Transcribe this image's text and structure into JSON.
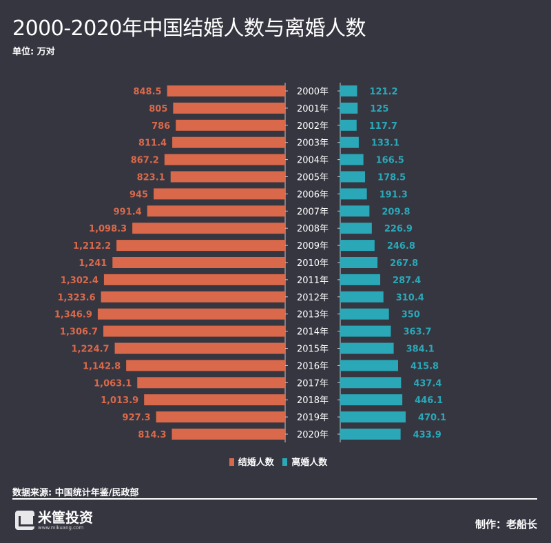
{
  "title": "2000-2020年中国结婚人数与离婚人数",
  "unit": "单位: 万对",
  "source": "数据来源: 中国统计年鉴/民政部",
  "logo": {
    "name": "米筐投资",
    "url": "www.mikuang.com"
  },
  "credit": "制作：老船长",
  "colors": {
    "background": "#363641",
    "marriage": "#d9694a",
    "divorce": "#2aa8b8"
  },
  "chart_data": {
    "type": "bar",
    "orientation": "horizontal-butterfly",
    "title": "2000-2020年中国结婚人数与离婚人数",
    "unit": "单位: 万对",
    "legend_position": "bottom",
    "grid": false,
    "categories": [
      "2000年",
      "2001年",
      "2002年",
      "2003年",
      "2004年",
      "2005年",
      "2006年",
      "2007年",
      "2008年",
      "2009年",
      "2010年",
      "2011年",
      "2012年",
      "2013年",
      "2014年",
      "2015年",
      "2016年",
      "2017年",
      "2018年",
      "2019年",
      "2020年"
    ],
    "series": [
      {
        "name": "结婚人数",
        "side": "left",
        "values": [
          848.5,
          805,
          786,
          811.4,
          867.2,
          823.1,
          945,
          991.4,
          1098.3,
          1212.2,
          1241,
          1302.4,
          1323.6,
          1346.9,
          1306.7,
          1224.7,
          1142.8,
          1063.1,
          1013.9,
          927.3,
          814.3
        ],
        "labels": [
          "848.5",
          "805",
          "786",
          "811.4",
          "867.2",
          "823.1",
          "945",
          "991.4",
          "1,098.3",
          "1,212.2",
          "1,241",
          "1,302.4",
          "1,323.6",
          "1,346.9",
          "1,306.7",
          "1,224.7",
          "1,142.8",
          "1,063.1",
          "1,013.9",
          "927.3",
          "814.3"
        ]
      },
      {
        "name": "离婚人数",
        "side": "right",
        "values": [
          121.2,
          125,
          117.7,
          133.1,
          166.5,
          178.5,
          191.3,
          209.8,
          226.9,
          246.8,
          267.8,
          287.4,
          310.4,
          350,
          363.7,
          384.1,
          415.8,
          437.4,
          446.1,
          470.1,
          433.9
        ],
        "labels": [
          "121.2",
          "125",
          "117.7",
          "133.1",
          "166.5",
          "178.5",
          "191.3",
          "209.8",
          "226.9",
          "246.8",
          "267.8",
          "287.4",
          "310.4",
          "350",
          "363.7",
          "384.1",
          "415.8",
          "437.4",
          "446.1",
          "470.1",
          "433.9"
        ]
      }
    ]
  }
}
